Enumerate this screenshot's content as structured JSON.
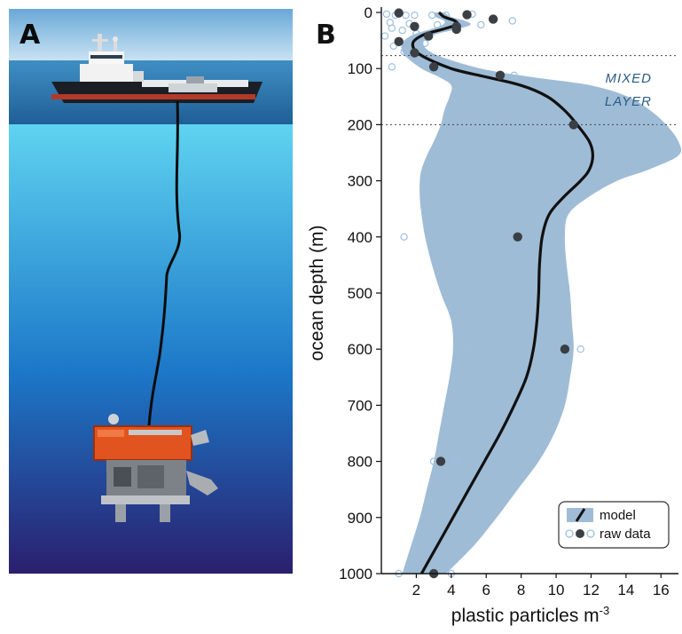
{
  "panels": {
    "a": "A",
    "b": "B"
  },
  "colors": {
    "sky_top": "#6aa8d8",
    "sky_bottom": "#c9e2f3",
    "sea_surface": "#2f7fb8",
    "water_top": "#5fd3f0",
    "water_mid": "#1c78c8",
    "water_bottom": "#2a1f6e",
    "band": "#9fbcd6",
    "model_line": "#111111",
    "point_filled": "#3a3f45",
    "point_open": "#9dbfdf",
    "annotation": "#2b5d86"
  },
  "scene": {
    "ship": "research-vessel-icon",
    "tether": "tether-cable",
    "rov": "rov-submersible-icon"
  },
  "chart_data": {
    "type": "line",
    "xlabel": "plastic particles m",
    "xlabel_sup": "-3",
    "ylabel": "ocean depth (m)",
    "xlim": [
      0,
      17
    ],
    "ylim": [
      1000,
      0
    ],
    "x_ticks": [
      2,
      4,
      6,
      8,
      10,
      12,
      14,
      16
    ],
    "y_ticks": [
      0,
      100,
      200,
      300,
      400,
      500,
      600,
      700,
      800,
      900,
      1000
    ],
    "mixed_layer_lines": [
      77,
      200
    ],
    "annotation": [
      "MIXED",
      "LAYER"
    ],
    "legend": {
      "model": "model",
      "raw": "raw data"
    },
    "model": {
      "depth": [
        0,
        8,
        15,
        22,
        30,
        40,
        55,
        75,
        100,
        115,
        130,
        150,
        175,
        200,
        230,
        255,
        280,
        300,
        330,
        360,
        400,
        450,
        500,
        550,
        600,
        650,
        700,
        750,
        800,
        850,
        900,
        950,
        1000
      ],
      "mean": [
        3.3,
        3.6,
        4.2,
        4.3,
        3.5,
        2.4,
        1.8,
        2.2,
        4.0,
        6.0,
        8.0,
        9.5,
        10.5,
        11.2,
        11.9,
        12.1,
        11.9,
        11.4,
        10.4,
        9.6,
        9.2,
        9.05,
        9.0,
        8.9,
        8.7,
        8.3,
        7.6,
        6.8,
        5.9,
        5.0,
        4.1,
        3.2,
        2.3
      ],
      "lower": [
        3.0,
        3.1,
        3.6,
        3.5,
        2.8,
        1.8,
        1.2,
        1.3,
        2.3,
        3.3,
        4.0,
        3.9,
        3.6,
        3.4,
        3.0,
        2.6,
        2.3,
        2.2,
        2.2,
        2.3,
        2.5,
        2.9,
        3.4,
        4.0,
        4.1,
        3.9,
        3.6,
        3.3,
        3.0,
        2.6,
        2.2,
        1.7,
        1.2
      ],
      "upper": [
        3.6,
        4.0,
        4.8,
        5.1,
        4.3,
        3.0,
        2.4,
        3.1,
        5.7,
        8.6,
        12.0,
        14.1,
        15.4,
        16.3,
        17.0,
        17.0,
        15.3,
        13.5,
        11.8,
        10.7,
        10.5,
        10.6,
        10.8,
        10.9,
        11.0,
        10.8,
        10.5,
        9.9,
        9.0,
        7.8,
        6.6,
        5.3,
        3.7
      ]
    },
    "raw_filled": [
      [
        1.0,
        1
      ],
      [
        4.9,
        4
      ],
      [
        6.4,
        12
      ],
      [
        1.9,
        25
      ],
      [
        4.3,
        25
      ],
      [
        4.3,
        30
      ],
      [
        2.7,
        42
      ],
      [
        1.0,
        52
      ],
      [
        1.9,
        72
      ],
      [
        3.0,
        97
      ],
      [
        6.8,
        112
      ],
      [
        11.0,
        200
      ],
      [
        7.8,
        400
      ],
      [
        10.5,
        600
      ],
      [
        3.4,
        800
      ],
      [
        3.0,
        1000
      ]
    ],
    "raw_open": [
      [
        0.3,
        3
      ],
      [
        0.8,
        5
      ],
      [
        1.4,
        5
      ],
      [
        1.9,
        5
      ],
      [
        2.9,
        5
      ],
      [
        3.7,
        5
      ],
      [
        5.2,
        3
      ],
      [
        0.5,
        18
      ],
      [
        1.6,
        20
      ],
      [
        3.2,
        22
      ],
      [
        5.7,
        22
      ],
      [
        7.5,
        15
      ],
      [
        0.6,
        28
      ],
      [
        1.2,
        32
      ],
      [
        2.0,
        38
      ],
      [
        0.2,
        42
      ],
      [
        2.5,
        55
      ],
      [
        0.7,
        60
      ],
      [
        1.3,
        70
      ],
      [
        2.2,
        88
      ],
      [
        0.6,
        97
      ],
      [
        3.6,
        112
      ],
      [
        7.6,
        112
      ],
      [
        16.0,
        200
      ],
      [
        1.3,
        400
      ],
      [
        9.0,
        400
      ],
      [
        5.0,
        600
      ],
      [
        11.4,
        600
      ],
      [
        3.0,
        800
      ],
      [
        4.3,
        800
      ],
      [
        1.0,
        1000
      ],
      [
        4.0,
        1000
      ]
    ]
  }
}
